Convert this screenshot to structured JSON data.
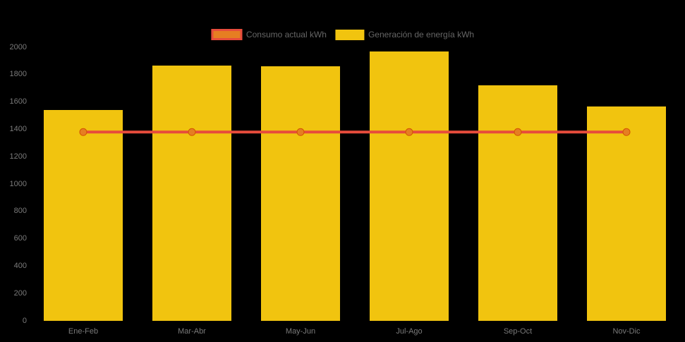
{
  "background": "#000000",
  "legend": {
    "items": [
      {
        "label": "Consumo actual kWh",
        "swatch_fill": "#E67E22",
        "swatch_border": "#E74C3C"
      },
      {
        "label": "Generación de energía kWh",
        "swatch_fill": "#F1C40F",
        "swatch_border": "#F1C40F"
      }
    ],
    "text_color": "#666666"
  },
  "chart_data": {
    "type": "bar",
    "title": "",
    "categories": [
      "Ene-Feb",
      "Mar-Abr",
      "May-Jun",
      "Jul-Ago",
      "Sep-Oct",
      "Nov-Dic"
    ],
    "series": [
      {
        "name": "Generación de energía kWh",
        "type": "bar",
        "color": "#F1C40F",
        "values": [
          1540,
          1865,
          1860,
          1970,
          1720,
          1565
        ]
      },
      {
        "name": "Consumo actual kWh",
        "type": "line",
        "color": "#E74C3C",
        "marker_color": "#E67E22",
        "marker_stroke": "#D35400",
        "values": [
          1380,
          1380,
          1380,
          1380,
          1380,
          1380
        ]
      }
    ],
    "xlabel": "",
    "ylabel": "",
    "ylim": [
      0,
      2000
    ],
    "yticks": [
      0,
      200,
      400,
      600,
      800,
      1000,
      1200,
      1400,
      1600,
      1800,
      2000
    ],
    "grid": false,
    "legend_position": "top-center",
    "tick_color": "#7A7A7A"
  }
}
